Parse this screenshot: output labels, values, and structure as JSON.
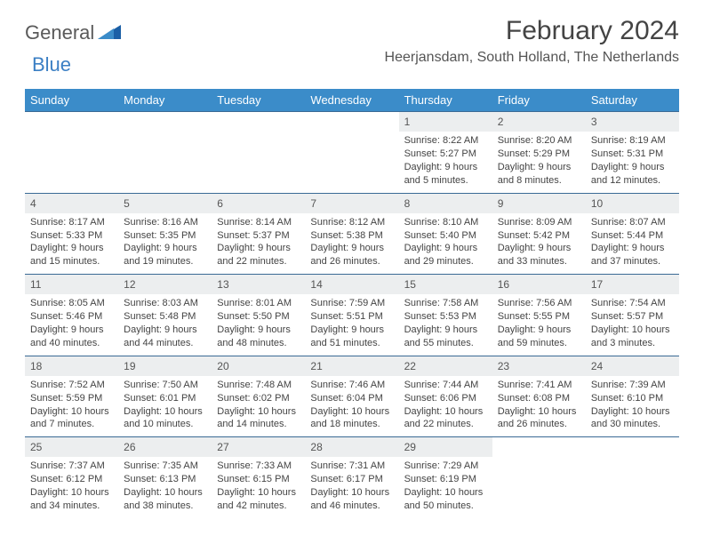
{
  "brand": {
    "text1": "General",
    "text2": "Blue"
  },
  "title": "February 2024",
  "location": "Heerjansdam, South Holland, The Netherlands",
  "colors": {
    "header_bg": "#3b8cc9",
    "header_fg": "#ffffff",
    "rule": "#3a6a95",
    "daynum_bg": "#eceeef",
    "text": "#444444",
    "brand_gray": "#5a5a5a",
    "brand_blue": "#3b7fc4"
  },
  "dow": [
    "Sunday",
    "Monday",
    "Tuesday",
    "Wednesday",
    "Thursday",
    "Friday",
    "Saturday"
  ],
  "weeks": [
    [
      null,
      null,
      null,
      null,
      {
        "n": "1",
        "sr": "8:22 AM",
        "ss": "5:27 PM",
        "dl": "9 hours and 5 minutes."
      },
      {
        "n": "2",
        "sr": "8:20 AM",
        "ss": "5:29 PM",
        "dl": "9 hours and 8 minutes."
      },
      {
        "n": "3",
        "sr": "8:19 AM",
        "ss": "5:31 PM",
        "dl": "9 hours and 12 minutes."
      }
    ],
    [
      {
        "n": "4",
        "sr": "8:17 AM",
        "ss": "5:33 PM",
        "dl": "9 hours and 15 minutes."
      },
      {
        "n": "5",
        "sr": "8:16 AM",
        "ss": "5:35 PM",
        "dl": "9 hours and 19 minutes."
      },
      {
        "n": "6",
        "sr": "8:14 AM",
        "ss": "5:37 PM",
        "dl": "9 hours and 22 minutes."
      },
      {
        "n": "7",
        "sr": "8:12 AM",
        "ss": "5:38 PM",
        "dl": "9 hours and 26 minutes."
      },
      {
        "n": "8",
        "sr": "8:10 AM",
        "ss": "5:40 PM",
        "dl": "9 hours and 29 minutes."
      },
      {
        "n": "9",
        "sr": "8:09 AM",
        "ss": "5:42 PM",
        "dl": "9 hours and 33 minutes."
      },
      {
        "n": "10",
        "sr": "8:07 AM",
        "ss": "5:44 PM",
        "dl": "9 hours and 37 minutes."
      }
    ],
    [
      {
        "n": "11",
        "sr": "8:05 AM",
        "ss": "5:46 PM",
        "dl": "9 hours and 40 minutes."
      },
      {
        "n": "12",
        "sr": "8:03 AM",
        "ss": "5:48 PM",
        "dl": "9 hours and 44 minutes."
      },
      {
        "n": "13",
        "sr": "8:01 AM",
        "ss": "5:50 PM",
        "dl": "9 hours and 48 minutes."
      },
      {
        "n": "14",
        "sr": "7:59 AM",
        "ss": "5:51 PM",
        "dl": "9 hours and 51 minutes."
      },
      {
        "n": "15",
        "sr": "7:58 AM",
        "ss": "5:53 PM",
        "dl": "9 hours and 55 minutes."
      },
      {
        "n": "16",
        "sr": "7:56 AM",
        "ss": "5:55 PM",
        "dl": "9 hours and 59 minutes."
      },
      {
        "n": "17",
        "sr": "7:54 AM",
        "ss": "5:57 PM",
        "dl": "10 hours and 3 minutes."
      }
    ],
    [
      {
        "n": "18",
        "sr": "7:52 AM",
        "ss": "5:59 PM",
        "dl": "10 hours and 7 minutes."
      },
      {
        "n": "19",
        "sr": "7:50 AM",
        "ss": "6:01 PM",
        "dl": "10 hours and 10 minutes."
      },
      {
        "n": "20",
        "sr": "7:48 AM",
        "ss": "6:02 PM",
        "dl": "10 hours and 14 minutes."
      },
      {
        "n": "21",
        "sr": "7:46 AM",
        "ss": "6:04 PM",
        "dl": "10 hours and 18 minutes."
      },
      {
        "n": "22",
        "sr": "7:44 AM",
        "ss": "6:06 PM",
        "dl": "10 hours and 22 minutes."
      },
      {
        "n": "23",
        "sr": "7:41 AM",
        "ss": "6:08 PM",
        "dl": "10 hours and 26 minutes."
      },
      {
        "n": "24",
        "sr": "7:39 AM",
        "ss": "6:10 PM",
        "dl": "10 hours and 30 minutes."
      }
    ],
    [
      {
        "n": "25",
        "sr": "7:37 AM",
        "ss": "6:12 PM",
        "dl": "10 hours and 34 minutes."
      },
      {
        "n": "26",
        "sr": "7:35 AM",
        "ss": "6:13 PM",
        "dl": "10 hours and 38 minutes."
      },
      {
        "n": "27",
        "sr": "7:33 AM",
        "ss": "6:15 PM",
        "dl": "10 hours and 42 minutes."
      },
      {
        "n": "28",
        "sr": "7:31 AM",
        "ss": "6:17 PM",
        "dl": "10 hours and 46 minutes."
      },
      {
        "n": "29",
        "sr": "7:29 AM",
        "ss": "6:19 PM",
        "dl": "10 hours and 50 minutes."
      },
      null,
      null
    ]
  ],
  "labels": {
    "sunrise": "Sunrise: ",
    "sunset": "Sunset: ",
    "daylight": "Daylight: "
  }
}
